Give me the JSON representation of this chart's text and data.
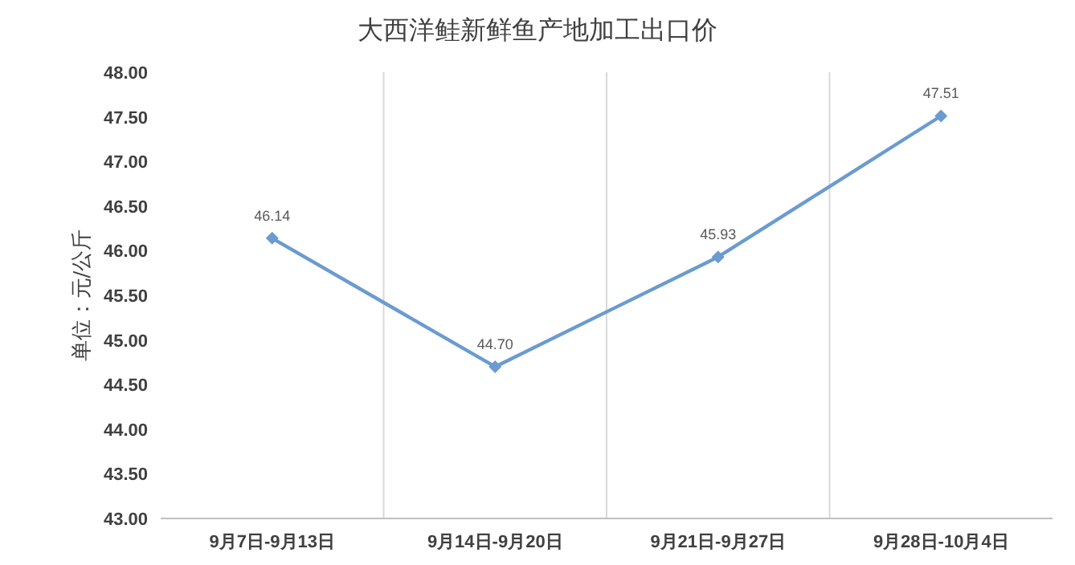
{
  "chart_data": {
    "type": "line",
    "title": "大西洋鲑新鲜鱼产地加工出口价",
    "ylabel": "单位：元/公斤",
    "categories": [
      "9月7日-9月13日",
      "9月14日-9月20日",
      "9月21日-9月27日",
      "9月28日-10月4日"
    ],
    "values": [
      46.14,
      44.7,
      45.93,
      47.51
    ],
    "value_labels": [
      "46.14",
      "44.70",
      "45.93",
      "47.51"
    ],
    "color": "#6a9bd1",
    "marker": "diamond",
    "grid": "x",
    "ylim": [
      43,
      48
    ],
    "yticks": [
      {
        "value": 43,
        "label": "43.00"
      },
      {
        "value": 43.5,
        "label": "43.50"
      },
      {
        "value": 44,
        "label": "44.00"
      },
      {
        "value": 44.5,
        "label": "44.50"
      },
      {
        "value": 45,
        "label": "45.00"
      },
      {
        "value": 45.5,
        "label": "45.50"
      },
      {
        "value": 46,
        "label": "46.00"
      },
      {
        "value": 46.5,
        "label": "46.50"
      },
      {
        "value": 47,
        "label": "47.00"
      },
      {
        "value": 47.5,
        "label": "47.50"
      },
      {
        "value": 48,
        "label": "48.00"
      }
    ]
  }
}
